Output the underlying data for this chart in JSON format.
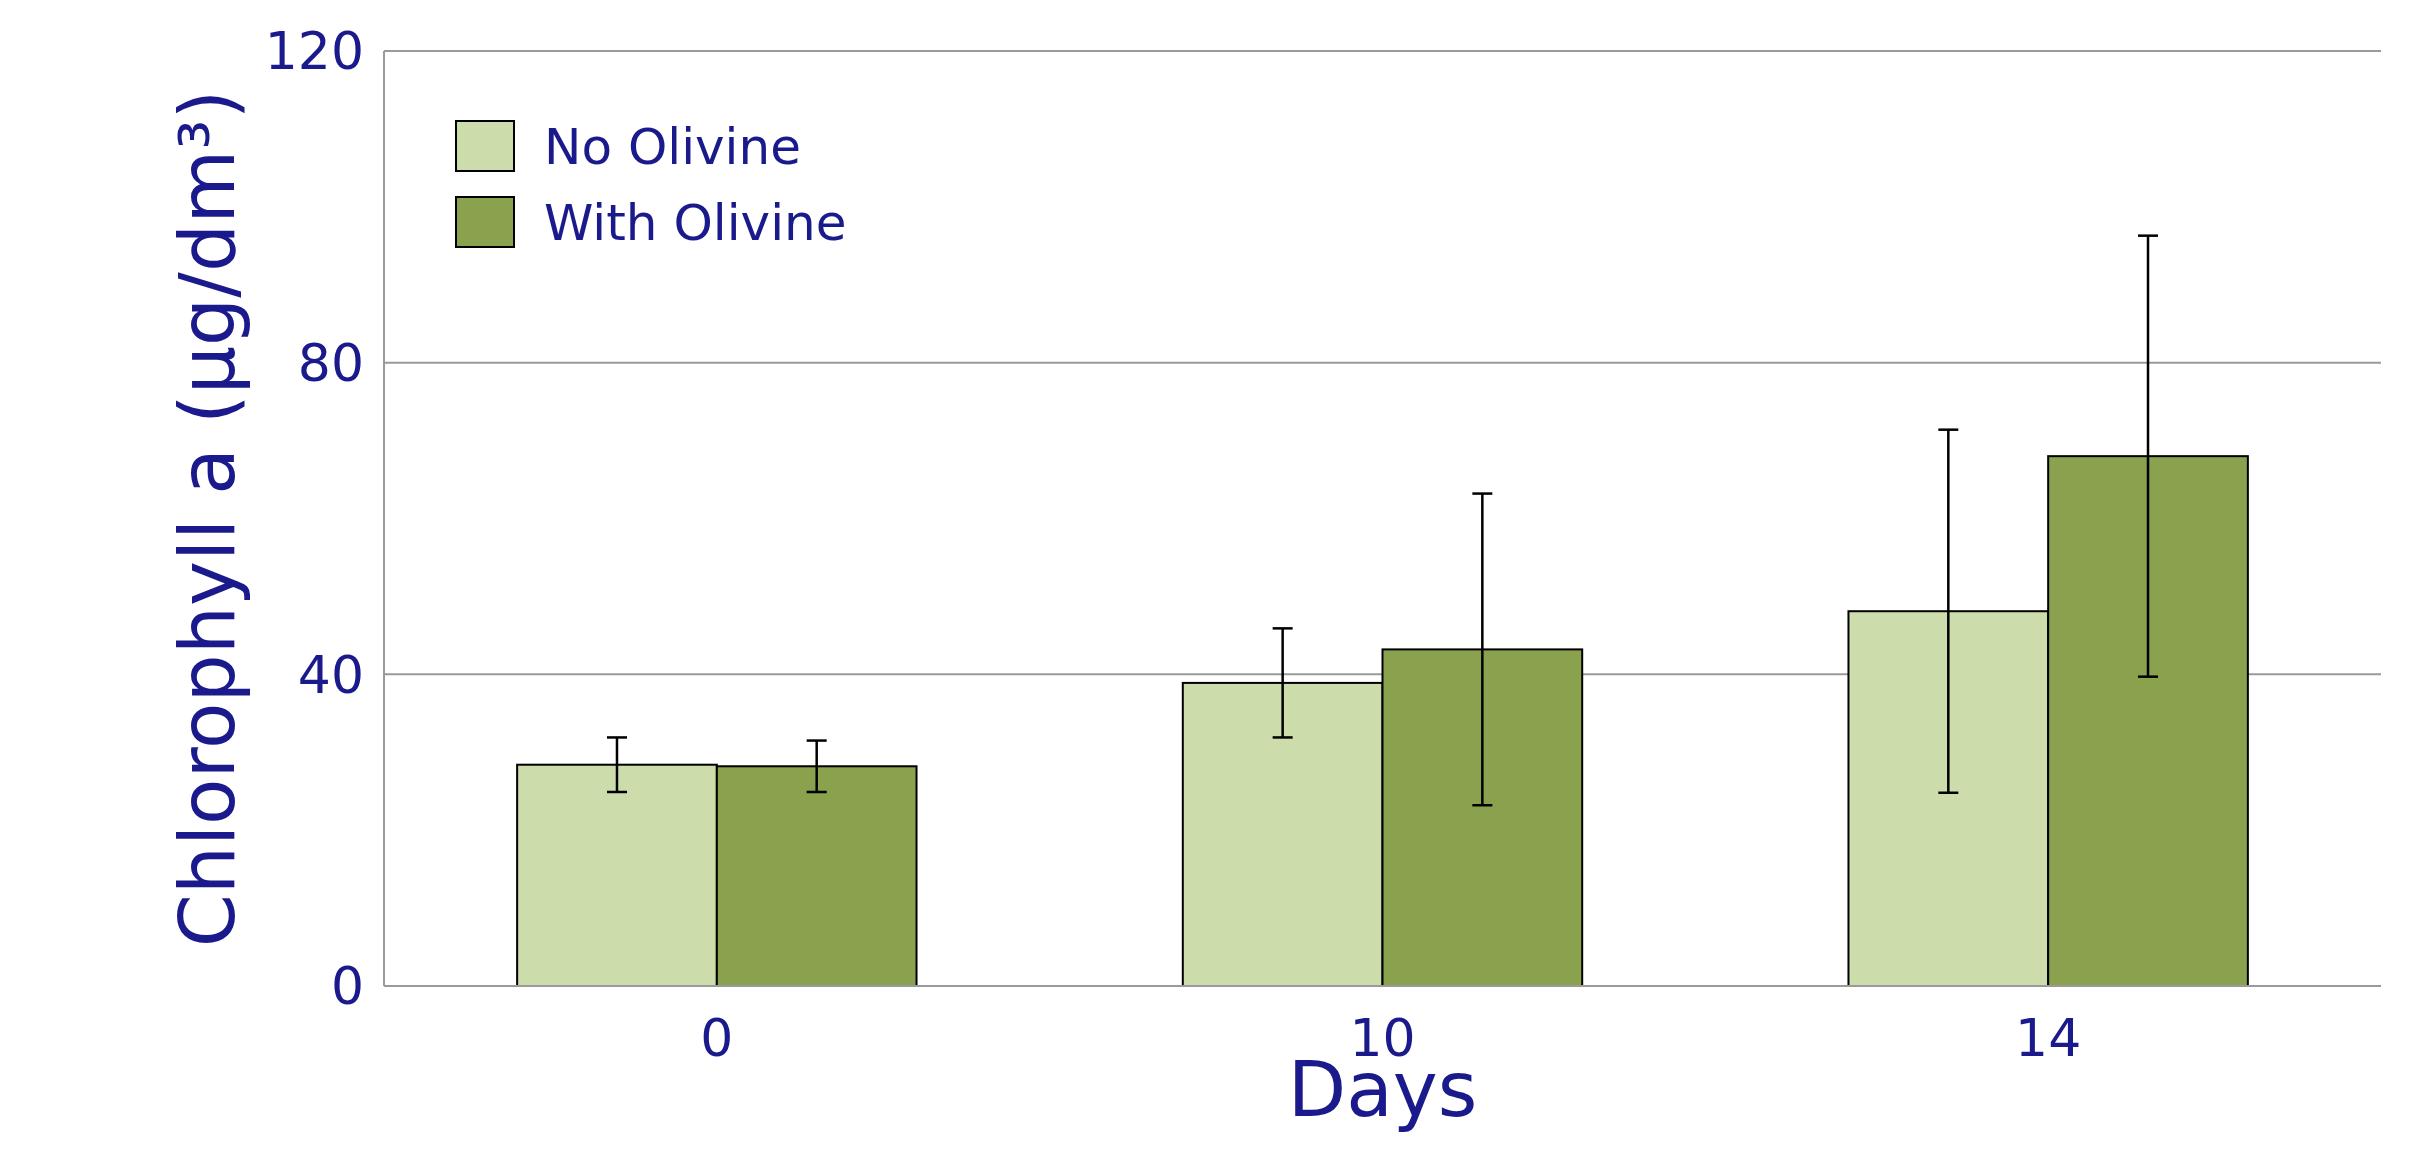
{
  "chart_data": {
    "type": "bar",
    "xlabel": "Days",
    "ylabel": "Chlorophyll a (µg/dm³)",
    "categories": [
      "0",
      "10",
      "14"
    ],
    "series": [
      {
        "name": "No Olivine",
        "color": "#cddcab",
        "values": [
          28.4,
          38.9,
          48.1
        ],
        "errors": [
          3.5,
          7,
          23.3
        ]
      },
      {
        "name": "With Olivine",
        "color": "#8aa14d",
        "values": [
          28.2,
          43.2,
          68
        ],
        "errors": [
          3.3,
          20,
          28.3
        ]
      }
    ],
    "ylim": [
      0,
      120
    ],
    "yticks": [
      0,
      40,
      80,
      120
    ],
    "grid": "y",
    "legend": "top left"
  }
}
